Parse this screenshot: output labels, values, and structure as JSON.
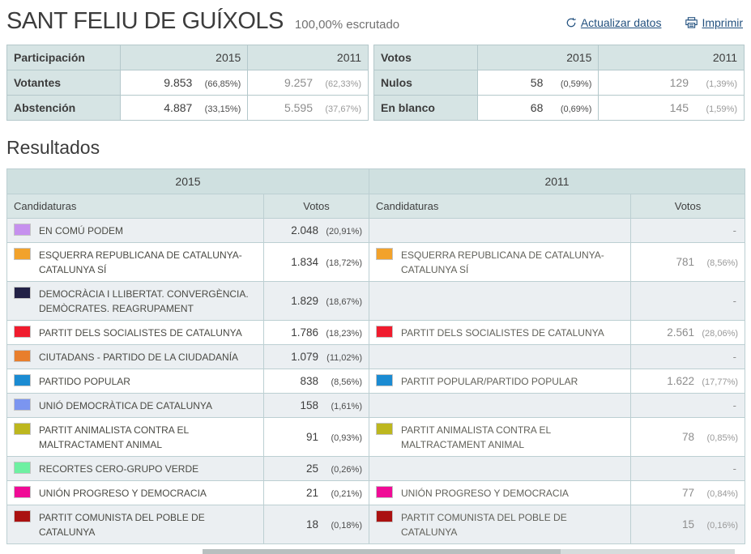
{
  "header": {
    "title": "SANT FELIU DE GUÍXOLS",
    "scrutiny": "100,00% escrutado",
    "refresh_label": "Actualizar datos",
    "print_label": "Imprimir"
  },
  "theme": {
    "link_color": "#23517f",
    "table_header_bg": "#d6e4e4",
    "year_header_bg": "#cfe0e0",
    "stripe_bg": "#ebeff2",
    "border_color": "#bccfd2"
  },
  "participation": {
    "title": "Participación",
    "col_2015": "2015",
    "col_2011": "2011",
    "rows": [
      {
        "label": "Votantes",
        "v2015": "9.853",
        "p2015": "(66,85%)",
        "v2011": "9.257",
        "p2011": "(62,33%)"
      },
      {
        "label": "Abstención",
        "v2015": "4.887",
        "p2015": "(33,15%)",
        "v2011": "5.595",
        "p2011": "(37,67%)"
      }
    ]
  },
  "votes": {
    "title": "Votos",
    "col_2015": "2015",
    "col_2011": "2011",
    "rows": [
      {
        "label": "Nulos",
        "v2015": "58",
        "p2015": "(0,59%)",
        "v2011": "129",
        "p2011": "(1,39%)"
      },
      {
        "label": "En blanco",
        "v2015": "68",
        "p2015": "(0,69%)",
        "v2011": "145",
        "p2011": "(1,59%)"
      }
    ]
  },
  "results": {
    "title": "Resultados",
    "year_left": "2015",
    "year_right": "2011",
    "col_candidaturas": "Candidaturas",
    "col_votos": "Votos",
    "empty_placeholder": "-",
    "rows": [
      {
        "left": {
          "color": "#c690ee",
          "name": "EN COMÚ PODEM",
          "votes": "2.048",
          "pct": "(20,91%)"
        },
        "right": null
      },
      {
        "left": {
          "color": "#f2a22b",
          "name": "ESQUERRA REPUBLICANA DE CATALUNYA-CATALUNYA SÍ",
          "votes": "1.834",
          "pct": "(18,72%)"
        },
        "right": {
          "color": "#f2a22b",
          "name": "ESQUERRA REPUBLICANA DE CATALUNYA-CATALUNYA SÍ",
          "votes": "781",
          "pct": "(8,56%)"
        }
      },
      {
        "left": {
          "color": "#222146",
          "name": "DEMOCRÀCIA I LLIBERTAT. CONVERGÈNCIA. DEMÒCRATES. REAGRUPAMENT",
          "votes": "1.829",
          "pct": "(18,67%)"
        },
        "right": null
      },
      {
        "left": {
          "color": "#f01c2e",
          "name": "PARTIT DELS SOCIALISTES DE CATALUNYA",
          "votes": "1.786",
          "pct": "(18,23%)"
        },
        "right": {
          "color": "#f01c2e",
          "name": "PARTIT DELS SOCIALISTES DE CATALUNYA",
          "votes": "2.561",
          "pct": "(28,06%)"
        }
      },
      {
        "left": {
          "color": "#e87e2c",
          "name": "CIUTADANS - PARTIDO DE LA CIUDADANÍA",
          "votes": "1.079",
          "pct": "(11,02%)"
        },
        "right": null
      },
      {
        "left": {
          "color": "#1b8bd2",
          "name": "PARTIDO POPULAR",
          "votes": "838",
          "pct": "(8,56%)"
        },
        "right": {
          "color": "#1b8bd2",
          "name": "PARTIT POPULAR/PARTIDO POPULAR",
          "votes": "1.622",
          "pct": "(17,77%)"
        }
      },
      {
        "left": {
          "color": "#7b95f0",
          "name": "UNIÓ DEMOCRÀTICA DE CATALUNYA",
          "votes": "158",
          "pct": "(1,61%)"
        },
        "right": null
      },
      {
        "left": {
          "color": "#bdb71f",
          "name": "PARTIT ANIMALISTA CONTRA EL MALTRACTAMENT ANIMAL",
          "votes": "91",
          "pct": "(0,93%)"
        },
        "right": {
          "color": "#bdb71f",
          "name": "PARTIT ANIMALISTA CONTRA EL MALTRACTAMENT ANIMAL",
          "votes": "78",
          "pct": "(0,85%)"
        }
      },
      {
        "left": {
          "color": "#6ef0a2",
          "name": "RECORTES CERO-GRUPO VERDE",
          "votes": "25",
          "pct": "(0,26%)"
        },
        "right": null
      },
      {
        "left": {
          "color": "#f00b96",
          "name": "UNIÓN PROGRESO Y DEMOCRACIA",
          "votes": "21",
          "pct": "(0,21%)"
        },
        "right": {
          "color": "#f00b96",
          "name": "UNIÓN PROGRESO Y DEMOCRACIA",
          "votes": "77",
          "pct": "(0,84%)"
        }
      },
      {
        "left": {
          "color": "#aa1111",
          "name": "PARTIT COMUNISTA DEL POBLE DE CATALUNYA",
          "votes": "18",
          "pct": "(0,18%)"
        },
        "right": {
          "color": "#aa1111",
          "name": "PARTIT COMUNISTA DEL POBLE DE CATALUNYA",
          "votes": "15",
          "pct": "(0,16%)"
        }
      }
    ]
  }
}
